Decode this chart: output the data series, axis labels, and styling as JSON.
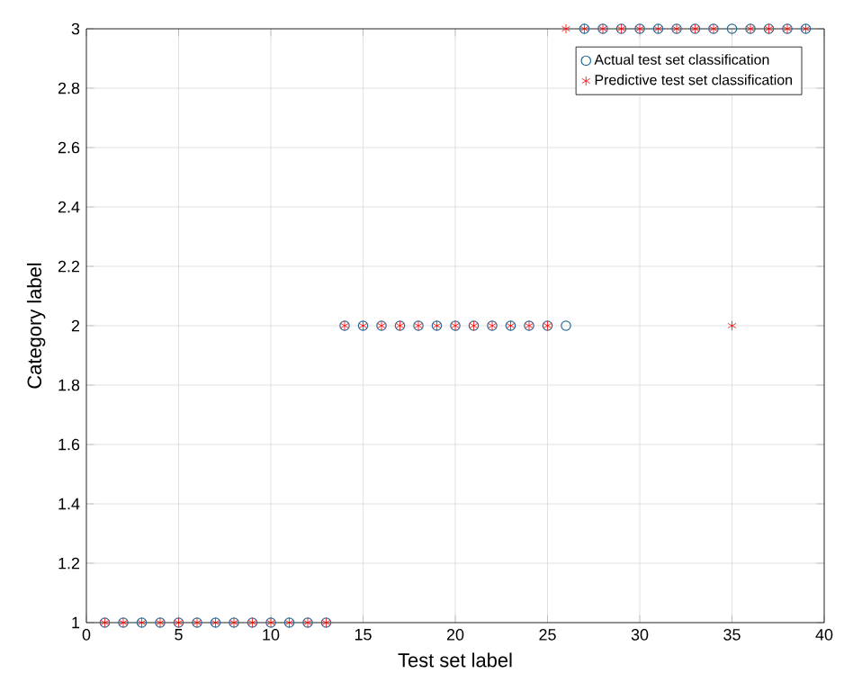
{
  "chart_data": {
    "type": "scatter",
    "xlabel": "Test set label",
    "ylabel": "Category label",
    "xlim": [
      0,
      40
    ],
    "ylim": [
      1,
      3
    ],
    "xticks": [
      0,
      5,
      10,
      15,
      20,
      25,
      30,
      35,
      40
    ],
    "yticks": [
      1,
      1.2,
      1.4,
      1.6,
      1.8,
      2,
      2.2,
      2.4,
      2.6,
      2.8,
      3
    ],
    "grid": true,
    "legend": "top right",
    "series": [
      {
        "name": "Actual test set classification",
        "color": "#2a6a96",
        "marker": "circle",
        "x": [
          1,
          2,
          3,
          4,
          5,
          6,
          7,
          8,
          9,
          10,
          11,
          12,
          13,
          14,
          15,
          16,
          17,
          18,
          19,
          20,
          21,
          22,
          23,
          24,
          25,
          26,
          27,
          28,
          29,
          30,
          31,
          32,
          33,
          34,
          35,
          36,
          37,
          38,
          39
        ],
        "values": [
          1,
          1,
          1,
          1,
          1,
          1,
          1,
          1,
          1,
          1,
          1,
          1,
          1,
          2,
          2,
          2,
          2,
          2,
          2,
          2,
          2,
          2,
          2,
          2,
          2,
          2,
          3,
          3,
          3,
          3,
          3,
          3,
          3,
          3,
          3,
          3,
          3,
          3,
          3
        ]
      },
      {
        "name": "Predictive test set classification",
        "color": "#ff0000",
        "marker": "cross",
        "x": [
          1,
          2,
          3,
          4,
          5,
          6,
          7,
          8,
          9,
          10,
          11,
          12,
          13,
          14,
          15,
          16,
          17,
          18,
          19,
          20,
          21,
          22,
          23,
          24,
          25,
          26,
          27,
          28,
          29,
          30,
          31,
          32,
          33,
          34,
          35,
          36,
          37,
          38,
          39
        ],
        "values": [
          1,
          1,
          1,
          1,
          1,
          1,
          1,
          1,
          1,
          1,
          1,
          1,
          1,
          2,
          2,
          2,
          2,
          2,
          2,
          2,
          2,
          2,
          2,
          2,
          2,
          3,
          3,
          3,
          3,
          3,
          3,
          3,
          3,
          3,
          2,
          3,
          3,
          3,
          3
        ]
      }
    ]
  }
}
